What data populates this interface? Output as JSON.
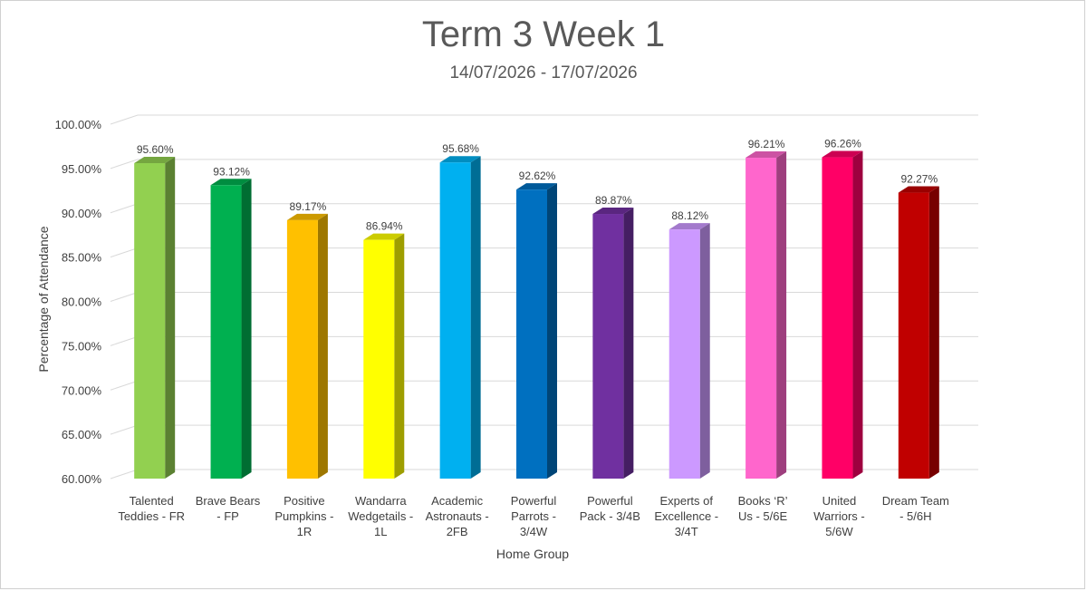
{
  "chart_data": {
    "type": "bar",
    "title": "Term 3 Week 1",
    "subtitle": "14/07/2026 - 17/07/2026",
    "xlabel": "Home Group",
    "ylabel": "Percentage of Attendance",
    "ylim": [
      60,
      100
    ],
    "yticks": [
      60,
      65,
      70,
      75,
      80,
      85,
      90,
      95,
      100
    ],
    "ytick_labels": [
      "60.00%",
      "65.00%",
      "70.00%",
      "75.00%",
      "80.00%",
      "85.00%",
      "90.00%",
      "95.00%",
      "100.00%"
    ],
    "grid": true,
    "style": "3d-column",
    "categories": [
      [
        "Talented",
        "Teddies - FR"
      ],
      [
        "Brave Bears",
        "- FP"
      ],
      [
        "Positive",
        "Pumpkins -",
        "1R"
      ],
      [
        "Wandarra",
        "Wedgetails -",
        "1L"
      ],
      [
        "Academic",
        "Astronauts -",
        "2FB"
      ],
      [
        "Powerful",
        "Parrots -",
        "3/4W"
      ],
      [
        "Powerful",
        "Pack - 3/4B"
      ],
      [
        "Experts of",
        "Excellence -",
        "3/4T"
      ],
      [
        "Books ‘R’",
        "Us - 5/6E"
      ],
      [
        "United",
        "Warriors -",
        "5/6W"
      ],
      [
        "Dream Team",
        "- 5/6H"
      ]
    ],
    "values": [
      95.6,
      93.12,
      89.17,
      86.94,
      95.68,
      92.62,
      89.87,
      88.12,
      96.21,
      96.26,
      92.27
    ],
    "value_labels": [
      "95.60%",
      "93.12%",
      "89.17%",
      "86.94%",
      "95.68%",
      "92.62%",
      "89.87%",
      "88.12%",
      "96.21%",
      "96.26%",
      "92.27%"
    ],
    "colors": [
      "#92d050",
      "#00b050",
      "#ffc000",
      "#ffff00",
      "#00b0f0",
      "#0070c0",
      "#7030a0",
      "#cc99ff",
      "#ff66cc",
      "#ff0066",
      "#c00000"
    ]
  }
}
